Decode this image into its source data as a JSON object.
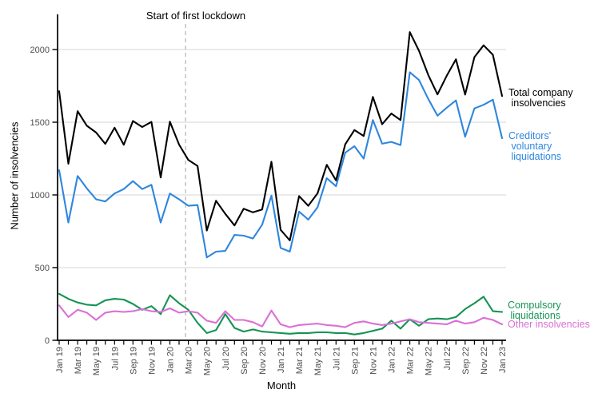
{
  "figure": {
    "annotation": "Start of first lockdown",
    "y_axis_label": "Number of insolvencies",
    "x_axis_label": "Month",
    "right_labels": {
      "total": "Total company\n insolvencies",
      "cvl": "Creditors'\n voluntary\n liquidations",
      "compulsory": "Compulsory\n liquidations",
      "other": "Other insolvencies"
    }
  },
  "chart_data": {
    "type": "line",
    "title": "",
    "xlabel": "Month",
    "ylabel": "Number of insolvencies",
    "ylim": [
      0,
      2240
    ],
    "yticks": [
      0,
      500,
      1000,
      1500,
      2000
    ],
    "grid": "horizontal",
    "legend_position": "direct-labels-right",
    "annotation": {
      "text": "Start of first lockdown",
      "x_month": "Mar 20",
      "x_index": 13.7
    },
    "x": [
      "Jan 19",
      "Feb 19",
      "Mar 19",
      "Apr 19",
      "May 19",
      "Jun 19",
      "Jul 19",
      "Aug 19",
      "Sep 19",
      "Oct 19",
      "Nov 19",
      "Dec 19",
      "Jan 20",
      "Feb 20",
      "Mar 20",
      "Apr 20",
      "May 20",
      "Jun 20",
      "Jul 20",
      "Aug 20",
      "Sep 20",
      "Oct 20",
      "Nov 20",
      "Dec 20",
      "Jan 21",
      "Feb 21",
      "Mar 21",
      "Apr 21",
      "May 21",
      "Jun 21",
      "Jul 21",
      "Aug 21",
      "Sep 21",
      "Oct 21",
      "Nov 21",
      "Dec 21",
      "Jan 22",
      "Feb 22",
      "Mar 22",
      "Apr 22",
      "May 22",
      "Jun 22",
      "Jul 22",
      "Aug 22",
      "Sep 22",
      "Oct 22",
      "Nov 22",
      "Dec 22",
      "Jan 23"
    ],
    "x_tick_label_every": 2,
    "series": [
      {
        "id": "total",
        "name": "Total company insolvencies",
        "color": "#000000",
        "values": [
          1713,
          1215,
          1576,
          1476,
          1429,
          1351,
          1462,
          1345,
          1508,
          1467,
          1502,
          1120,
          1504,
          1346,
          1240,
          1199,
          755,
          960,
          870,
          790,
          905,
          880,
          900,
          1228,
          760,
          687,
          992,
          925,
          1011,
          1207,
          1100,
          1348,
          1446,
          1405,
          1674,
          1486,
          1560,
          1515,
          2120,
          1991,
          1825,
          1691,
          1820,
          1933,
          1690,
          1948,
          2029,
          1964,
          1680
        ]
      },
      {
        "id": "cvl",
        "name": "Creditors' voluntary liquidations",
        "color": "#2e86de",
        "values": [
          1170,
          810,
          1130,
          1045,
          970,
          955,
          1010,
          1040,
          1095,
          1040,
          1070,
          810,
          1010,
          970,
          925,
          930,
          570,
          610,
          615,
          725,
          720,
          700,
          795,
          995,
          635,
          610,
          885,
          830,
          915,
          1115,
          1060,
          1290,
          1335,
          1250,
          1515,
          1352,
          1365,
          1343,
          1844,
          1790,
          1660,
          1545,
          1600,
          1650,
          1400,
          1595,
          1620,
          1655,
          1390
        ]
      },
      {
        "id": "compulsory",
        "name": "Compulsory liquidations",
        "color": "#149454",
        "values": [
          320,
          285,
          260,
          245,
          240,
          275,
          285,
          280,
          250,
          210,
          235,
          180,
          310,
          255,
          210,
          120,
          50,
          70,
          180,
          85,
          60,
          75,
          60,
          55,
          50,
          45,
          50,
          50,
          55,
          55,
          50,
          50,
          40,
          50,
          65,
          80,
          135,
          80,
          145,
          100,
          145,
          150,
          145,
          160,
          215,
          255,
          300,
          200,
          195
        ]
      },
      {
        "id": "other",
        "name": "Other insolvencies",
        "color": "#da70d6",
        "values": [
          240,
          160,
          210,
          190,
          140,
          190,
          200,
          195,
          200,
          215,
          200,
          195,
          220,
          190,
          200,
          190,
          135,
          120,
          200,
          140,
          140,
          125,
          95,
          205,
          110,
          90,
          105,
          110,
          115,
          105,
          100,
          90,
          120,
          130,
          115,
          105,
          115,
          130,
          145,
          125,
          120,
          115,
          110,
          135,
          115,
          125,
          155,
          140,
          110
        ]
      }
    ]
  }
}
